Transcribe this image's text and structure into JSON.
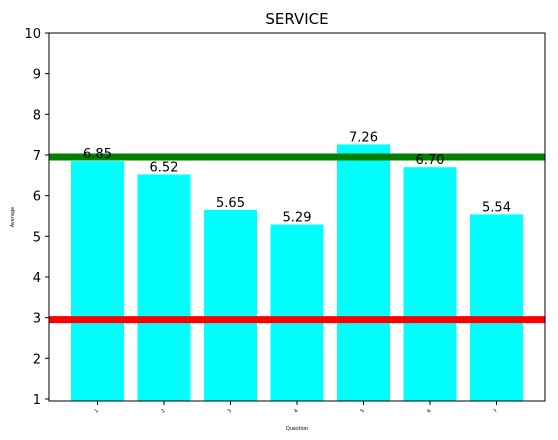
{
  "chart_data": {
    "type": "bar",
    "title": "SERVICE",
    "xlabel": "Question",
    "ylabel": "Average",
    "categories": [
      "1",
      "2",
      "3",
      "4",
      "5",
      "6",
      "7"
    ],
    "values": [
      6.85,
      6.52,
      5.65,
      5.29,
      7.26,
      6.7,
      5.54
    ],
    "data_labels": [
      "6.85",
      "6.52",
      "5.65",
      "5.29",
      "7.26",
      "6.70",
      "5.54"
    ],
    "ylim": [
      0.95,
      10
    ],
    "yticks": [
      "1",
      "2",
      "3",
      "4",
      "5",
      "6",
      "7",
      "8",
      "9",
      "10"
    ],
    "bar_color": "#00ffff",
    "reference_lines": [
      {
        "value": 6.95,
        "color": "#008000"
      },
      {
        "value": 2.95,
        "color": "#ff0000"
      }
    ],
    "grid": false
  }
}
